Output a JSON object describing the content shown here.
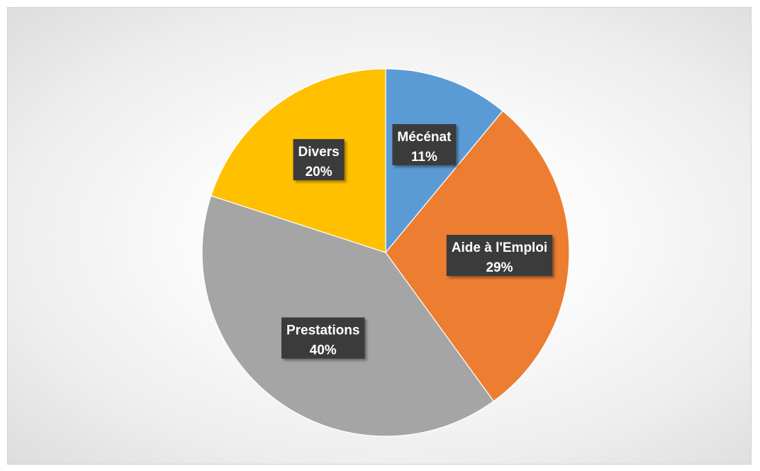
{
  "chart_data": {
    "type": "pie",
    "title": "",
    "slices": [
      {
        "label": "Mécénat",
        "value": 11,
        "value_label": "11%",
        "color": "#5B9BD5"
      },
      {
        "label": "Aide à l'Emploi",
        "value": 29,
        "value_label": "29%",
        "color": "#ED7D31"
      },
      {
        "label": "Prestations",
        "value": 40,
        "value_label": "40%",
        "color": "#A5A5A5"
      },
      {
        "label": "Divers",
        "value": 20,
        "value_label": "20%",
        "color": "#FFC000"
      }
    ],
    "start_angle_deg": 0,
    "direction": "clockwise",
    "legend": "none",
    "data_labels": "category-and-percent"
  }
}
